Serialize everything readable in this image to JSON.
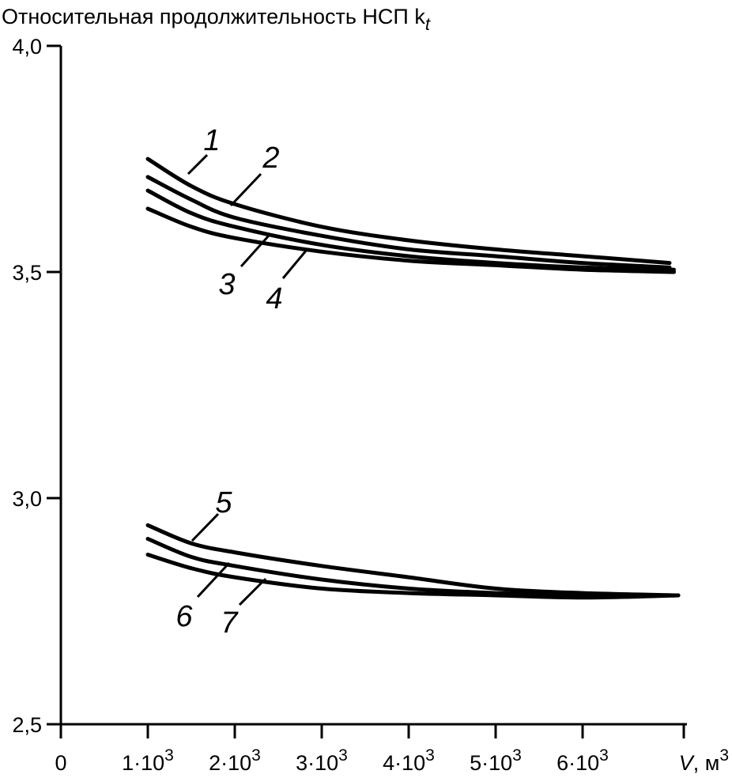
{
  "chart_data": {
    "type": "line",
    "title": "",
    "ylabel": "Относительная продолжительность НСП k",
    "ylabel_subscript": "t",
    "xlabel_var": "V",
    "xlabel_unit": ", м",
    "xlabel_unit_sup": "3",
    "xlim": [
      0,
      7200
    ],
    "ylim": [
      2.5,
      4.0
    ],
    "grid": false,
    "y_ticks": [
      {
        "value": 4.0,
        "label": "4,0"
      },
      {
        "value": 3.5,
        "label": "3,5"
      },
      {
        "value": 3.0,
        "label": "3,0"
      },
      {
        "value": 2.5,
        "label": "2,5"
      }
    ],
    "x_ticks": [
      {
        "value": 0,
        "base": "0",
        "sup": ""
      },
      {
        "value": 1000,
        "base": "1·10",
        "sup": "3"
      },
      {
        "value": 2000,
        "base": "2·10",
        "sup": "3"
      },
      {
        "value": 3000,
        "base": "3·10",
        "sup": "3"
      },
      {
        "value": 4000,
        "base": "4·10",
        "sup": "3"
      },
      {
        "value": 5000,
        "base": "5·10",
        "sup": "3"
      },
      {
        "value": 6000,
        "base": "6·10",
        "sup": "3"
      }
    ],
    "series": [
      {
        "label": "1",
        "x": [
          1000,
          1500,
          2000,
          3000,
          4000,
          5000,
          6000,
          7000
        ],
        "y": [
          3.75,
          3.69,
          3.65,
          3.6,
          3.57,
          3.55,
          3.535,
          3.52
        ]
      },
      {
        "label": "2",
        "x": [
          1000,
          1500,
          2000,
          3000,
          4000,
          5000,
          6000,
          7000
        ],
        "y": [
          3.71,
          3.66,
          3.62,
          3.58,
          3.55,
          3.535,
          3.52,
          3.51
        ]
      },
      {
        "label": "3",
        "x": [
          1000,
          1500,
          2000,
          3000,
          4000,
          5000,
          6000,
          7050
        ],
        "y": [
          3.68,
          3.63,
          3.6,
          3.56,
          3.535,
          3.52,
          3.51,
          3.505
        ]
      },
      {
        "label": "4",
        "x": [
          1000,
          1500,
          2000,
          3000,
          4000,
          5000,
          6000,
          7050
        ],
        "y": [
          3.64,
          3.6,
          3.575,
          3.545,
          3.525,
          3.515,
          3.505,
          3.5
        ]
      },
      {
        "label": "5",
        "x": [
          1000,
          1500,
          2000,
          3000,
          4000,
          5000,
          6000,
          7100
        ],
        "y": [
          2.94,
          2.9,
          2.88,
          2.85,
          2.825,
          2.8,
          2.79,
          2.785
        ]
      },
      {
        "label": "6",
        "x": [
          1000,
          1500,
          2000,
          3000,
          4000,
          5000,
          6000,
          7100
        ],
        "y": [
          2.91,
          2.87,
          2.85,
          2.82,
          2.8,
          2.79,
          2.785,
          2.785
        ]
      },
      {
        "label": "7",
        "x": [
          1000,
          1500,
          2000,
          3000,
          4000,
          5000,
          6000,
          7100
        ],
        "y": [
          2.875,
          2.845,
          2.825,
          2.8,
          2.79,
          2.785,
          2.78,
          2.785
        ]
      }
    ]
  }
}
